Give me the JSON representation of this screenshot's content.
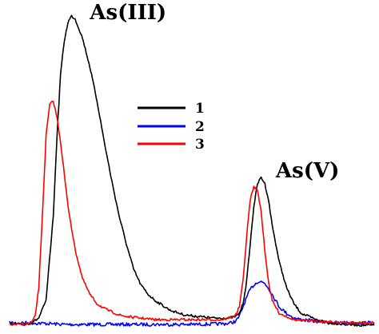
{
  "chart_data": {
    "type": "line",
    "title": "",
    "xlabel": "",
    "ylabel": "",
    "axes_visible": false,
    "grid": false,
    "legend_position": "top-center",
    "x_unit": "arbitrary",
    "y_unit": "arbitrary",
    "xlim": [
      0,
      100
    ],
    "ylim": [
      0,
      100
    ],
    "annotations": [
      {
        "text": "As(III)",
        "x": 22,
        "y": 97
      },
      {
        "text": "As(V)",
        "x": 73,
        "y": 47
      }
    ],
    "series": [
      {
        "name": "1",
        "color": "#000000",
        "x": [
          0,
          4,
          6,
          8,
          10,
          12,
          13,
          14,
          15,
          16,
          17,
          18,
          20,
          22,
          24,
          26,
          28,
          30,
          32,
          34,
          36,
          38,
          40,
          44,
          48,
          52,
          56,
          60,
          62,
          63,
          64,
          65,
          66,
          67,
          68,
          69,
          70,
          71,
          72,
          74,
          76,
          78,
          80,
          84,
          88,
          92,
          96,
          100
        ],
        "y": [
          0.5,
          0.5,
          1,
          2.5,
          8,
          35,
          60,
          80,
          90,
          96,
          98,
          97,
          91,
          82,
          71,
          58,
          46,
          35,
          26,
          18,
          13,
          10,
          8,
          5,
          3.5,
          3,
          2.5,
          2.5,
          3,
          4,
          7,
          14,
          26,
          38,
          45,
          47,
          45,
          40,
          32,
          20,
          12,
          7,
          4,
          2,
          1,
          0.5,
          0.3,
          0.2
        ]
      },
      {
        "name": "2",
        "color": "#0000ff",
        "x": [
          0,
          5,
          10,
          15,
          20,
          25,
          30,
          35,
          40,
          45,
          50,
          55,
          60,
          62,
          63,
          64,
          65,
          66,
          67,
          68,
          69,
          70,
          71,
          72,
          73,
          74,
          76,
          78,
          80,
          84,
          88,
          92,
          96,
          100
        ],
        "y": [
          1,
          1,
          0.8,
          0.5,
          0.5,
          0.5,
          0.5,
          0.5,
          0.5,
          0.5,
          0.5,
          0.6,
          0.8,
          1.5,
          3,
          6,
          9,
          11.5,
          13,
          14,
          14,
          13.5,
          12,
          10,
          8,
          6,
          4,
          2.5,
          2,
          1.5,
          1,
          1,
          1,
          1
        ]
      },
      {
        "name": "3",
        "color": "#ff0000",
        "x": [
          0,
          4,
          6,
          7,
          8,
          9,
          10,
          11,
          12,
          13,
          14,
          15,
          16,
          18,
          20,
          22,
          24,
          26,
          28,
          30,
          32,
          36,
          40,
          45,
          50,
          55,
          58,
          60,
          62,
          63,
          64,
          65,
          66,
          67,
          68,
          69,
          70,
          71,
          72,
          74,
          76,
          78,
          80,
          85,
          90,
          95,
          100
        ],
        "y": [
          0.5,
          0.5,
          1,
          3,
          12,
          35,
          60,
          70,
          71,
          66,
          58,
          48,
          38,
          24,
          15,
          10,
          7,
          5.5,
          4.5,
          3.5,
          3,
          2.5,
          2,
          2,
          2,
          2,
          2,
          2.5,
          3.5,
          6,
          14,
          28,
          40,
          44,
          43,
          36,
          24,
          14,
          8,
          4,
          3,
          2,
          1.8,
          1.5,
          1.2,
          1,
          1
        ]
      }
    ]
  }
}
